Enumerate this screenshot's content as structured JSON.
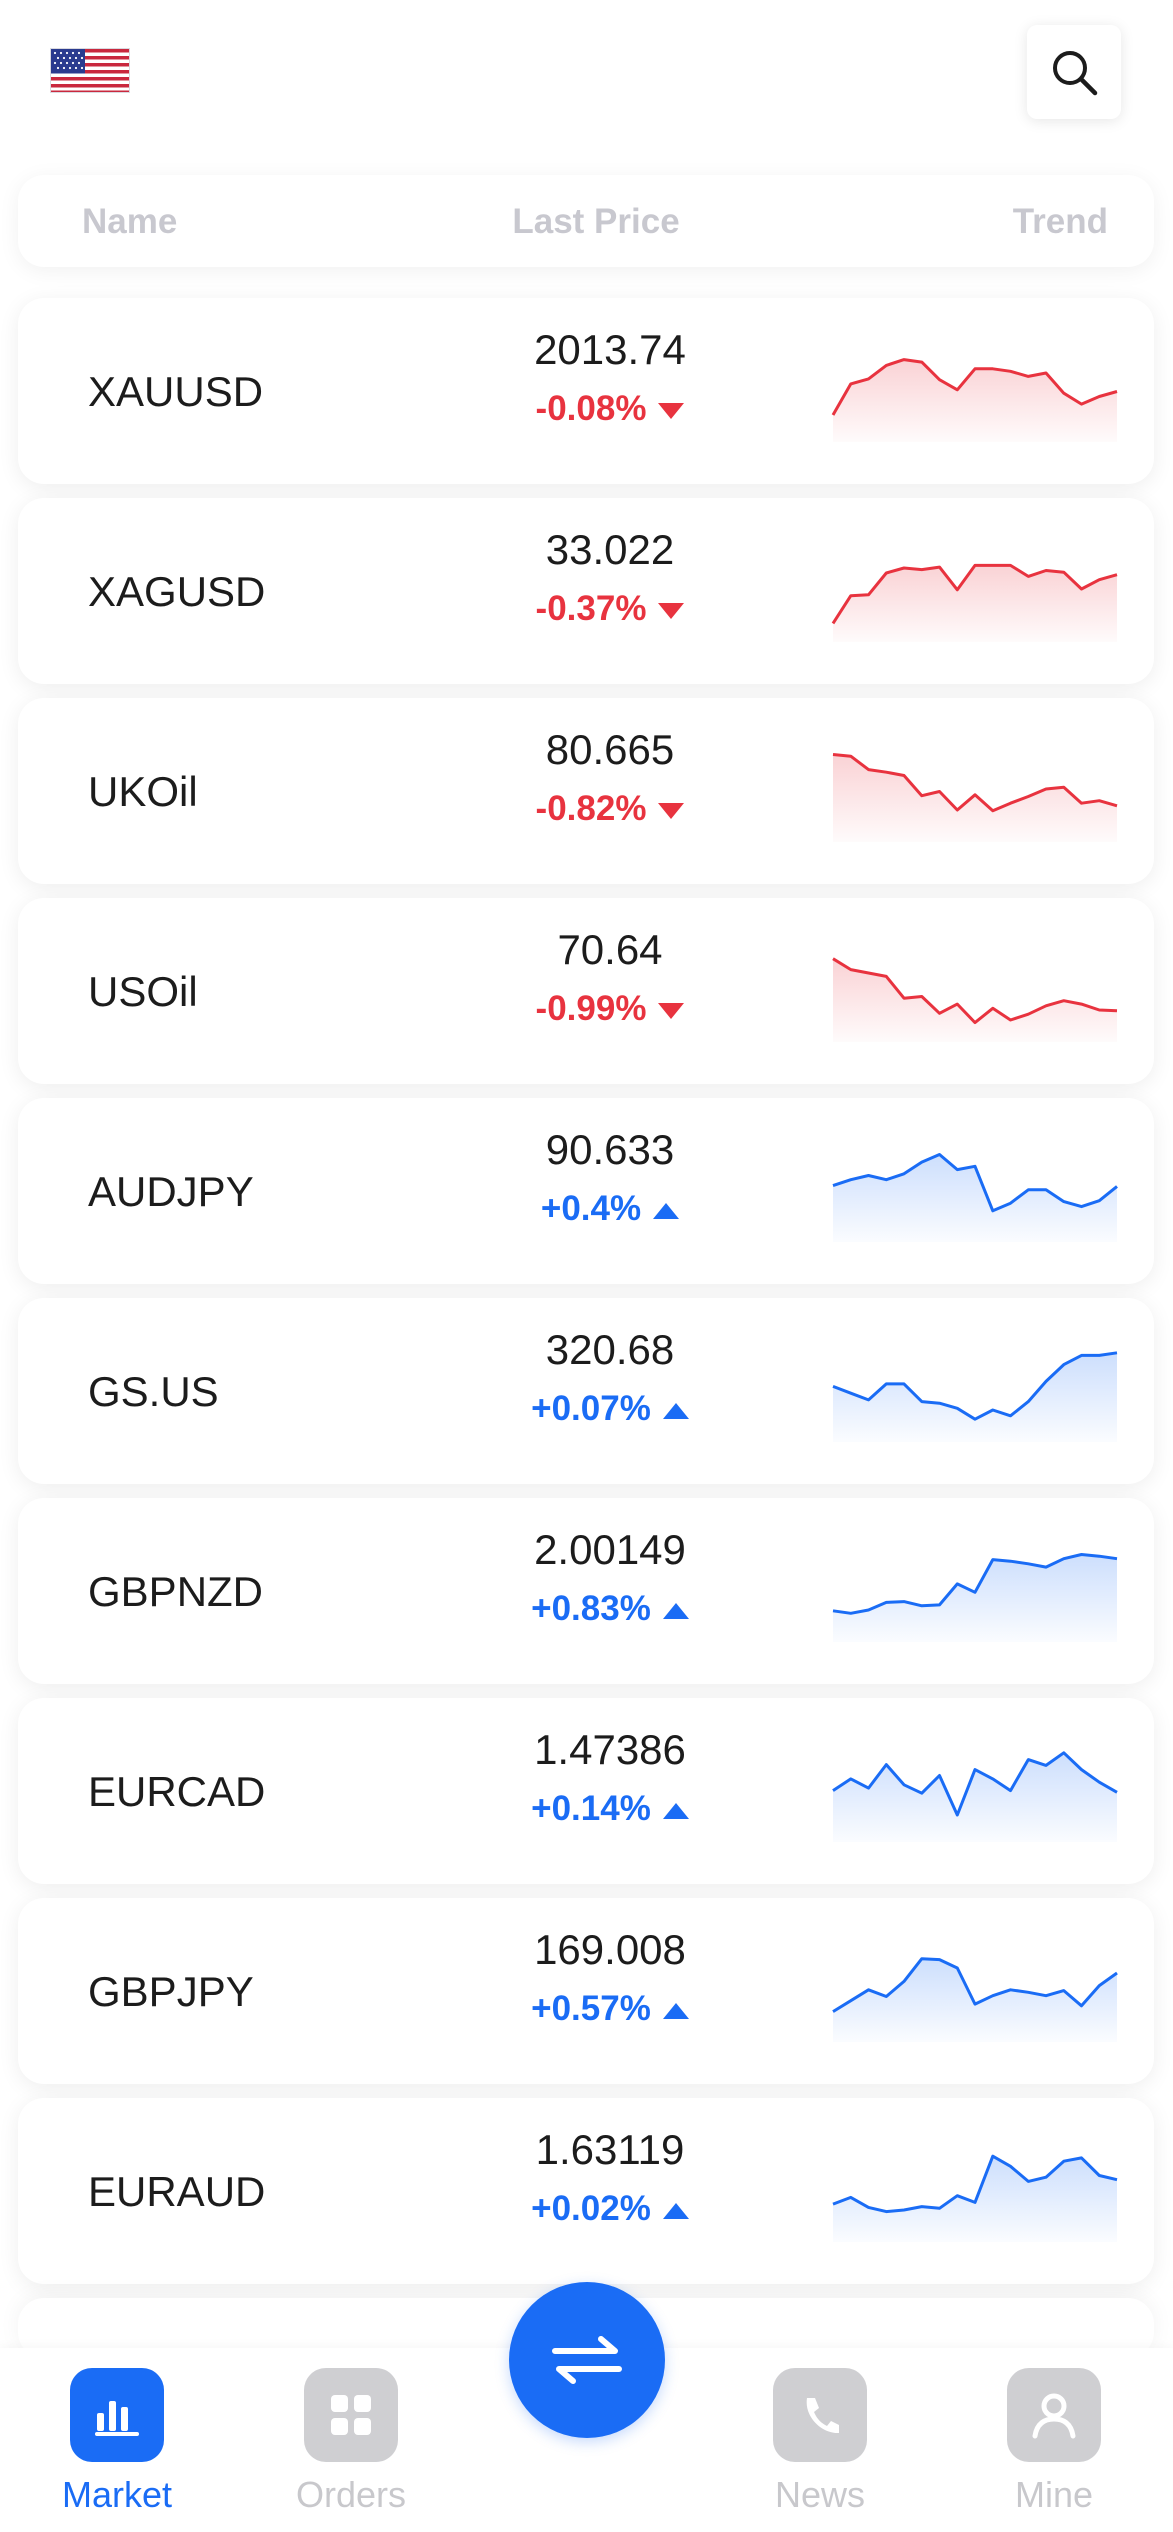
{
  "header": {
    "flag_icon": "us-flag-icon",
    "search_icon": "search-icon"
  },
  "columns": {
    "name": "Name",
    "last_price": "Last Price",
    "trend": "Trend"
  },
  "colors": {
    "up": "#1a6cf5",
    "down": "#e8333f",
    "accent": "#1a6cf5",
    "inactive": "#cfcfd2"
  },
  "quotes": [
    {
      "symbol": "XAUUSD",
      "price": "2013.74",
      "change": "-0.08%",
      "direction": "down",
      "trend": [
        0.25,
        0.62,
        0.68,
        0.84,
        0.91,
        0.88,
        0.67,
        0.55,
        0.8,
        0.8,
        0.77,
        0.71,
        0.75,
        0.51,
        0.38,
        0.47,
        0.53
      ]
    },
    {
      "symbol": "XAGUSD",
      "price": "33.022",
      "change": "-0.37%",
      "direction": "down",
      "trend": [
        0.15,
        0.48,
        0.49,
        0.75,
        0.81,
        0.79,
        0.82,
        0.55,
        0.84,
        0.84,
        0.84,
        0.71,
        0.78,
        0.76,
        0.56,
        0.67,
        0.73
      ]
    },
    {
      "symbol": "UKOil",
      "price": "80.665",
      "change": "-0.82%",
      "direction": "down",
      "trend": [
        0.97,
        0.95,
        0.79,
        0.76,
        0.72,
        0.48,
        0.53,
        0.31,
        0.49,
        0.3,
        0.39,
        0.47,
        0.56,
        0.58,
        0.39,
        0.42,
        0.36
      ]
    },
    {
      "symbol": "USOil",
      "price": "70.64",
      "change": "-0.99%",
      "direction": "down",
      "trend": [
        0.92,
        0.79,
        0.75,
        0.71,
        0.45,
        0.47,
        0.27,
        0.38,
        0.16,
        0.33,
        0.19,
        0.26,
        0.36,
        0.42,
        0.38,
        0.31,
        0.3
      ]
    },
    {
      "symbol": "AUDJPY",
      "price": "90.633",
      "change": "+0.4%",
      "direction": "up",
      "trend": [
        0.6,
        0.67,
        0.72,
        0.67,
        0.74,
        0.88,
        0.97,
        0.79,
        0.83,
        0.3,
        0.39,
        0.55,
        0.55,
        0.41,
        0.35,
        0.42,
        0.59
      ]
    },
    {
      "symbol": "GS.US",
      "price": "320.68",
      "change": "+0.07%",
      "direction": "up",
      "trend": [
        0.59,
        0.51,
        0.43,
        0.62,
        0.62,
        0.41,
        0.39,
        0.33,
        0.2,
        0.31,
        0.24,
        0.41,
        0.65,
        0.85,
        0.96,
        0.96,
        0.99
      ]
    },
    {
      "symbol": "GBPNZD",
      "price": "2.00149",
      "change": "+0.83%",
      "direction": "up",
      "trend": [
        0.3,
        0.27,
        0.31,
        0.4,
        0.41,
        0.36,
        0.37,
        0.62,
        0.52,
        0.91,
        0.89,
        0.86,
        0.82,
        0.92,
        0.97,
        0.95,
        0.92
      ]
    },
    {
      "symbol": "EURCAD",
      "price": "1.47386",
      "change": "+0.14%",
      "direction": "up",
      "trend": [
        0.54,
        0.68,
        0.57,
        0.85,
        0.61,
        0.51,
        0.72,
        0.25,
        0.79,
        0.68,
        0.54,
        0.91,
        0.84,
        0.99,
        0.79,
        0.64,
        0.52
      ]
    },
    {
      "symbol": "GBPJPY",
      "price": "169.008",
      "change": "+0.57%",
      "direction": "up",
      "trend": [
        0.29,
        0.42,
        0.55,
        0.47,
        0.65,
        0.92,
        0.91,
        0.81,
        0.38,
        0.48,
        0.55,
        0.52,
        0.48,
        0.54,
        0.36,
        0.6,
        0.75
      ]
    },
    {
      "symbol": "EURAUD",
      "price": "1.63119",
      "change": "+0.02%",
      "direction": "up",
      "trend": [
        0.38,
        0.46,
        0.34,
        0.29,
        0.31,
        0.35,
        0.33,
        0.48,
        0.4,
        0.95,
        0.83,
        0.65,
        0.7,
        0.89,
        0.93,
        0.72,
        0.67
      ]
    }
  ],
  "nav": {
    "items": [
      {
        "label": "Market",
        "icon": "bar-chart-icon",
        "active": true
      },
      {
        "label": "Orders",
        "icon": "grid-icon",
        "active": false
      },
      {
        "label": "News",
        "icon": "phone-icon",
        "active": false
      },
      {
        "label": "Mine",
        "icon": "user-icon",
        "active": false
      }
    ],
    "center_icon": "swap-arrows-icon"
  }
}
